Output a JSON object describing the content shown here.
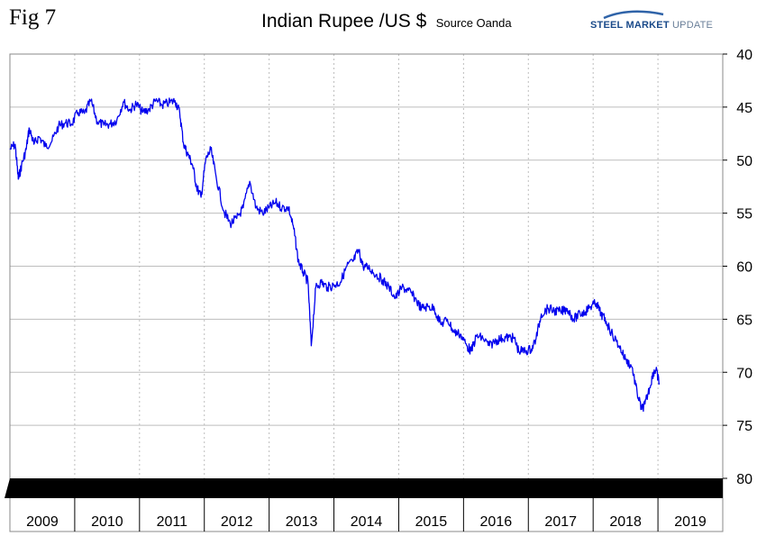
{
  "header": {
    "fig_label": "Fig 7",
    "title": "Indian Rupee /US $",
    "subtitle": "Source Oanda",
    "brand_part1": "STEEL MARKET",
    "brand_part2": "UPDATE"
  },
  "colors": {
    "series": "#0000ee",
    "grid": "#bdbdbd",
    "band": "#000000",
    "brand": "#1a4a8a"
  },
  "chart_data": {
    "type": "line",
    "title": "Indian Rupee /US $",
    "subtitle": "Source Oanda",
    "x_categories": [
      "2009",
      "2010",
      "2011",
      "2012",
      "2013",
      "2014",
      "2015",
      "2016",
      "2017",
      "2018",
      "2019"
    ],
    "y_axis": {
      "min": 40,
      "max": 80,
      "reversed": true,
      "ticks": [
        40,
        45,
        50,
        55,
        60,
        65,
        70,
        75,
        80
      ],
      "position": "right"
    },
    "grid": true,
    "series": [
      {
        "color": "#0000ee",
        "points": [
          [
            2009.0,
            49.0
          ],
          [
            2009.08,
            48.5
          ],
          [
            2009.13,
            51.8
          ],
          [
            2009.18,
            50.5
          ],
          [
            2009.25,
            49.0
          ],
          [
            2009.3,
            47.0
          ],
          [
            2009.37,
            48.5
          ],
          [
            2009.45,
            47.8
          ],
          [
            2009.55,
            48.7
          ],
          [
            2009.65,
            48.2
          ],
          [
            2009.75,
            46.8
          ],
          [
            2009.85,
            46.5
          ],
          [
            2009.95,
            46.6
          ],
          [
            2010.05,
            45.5
          ],
          [
            2010.15,
            45.6
          ],
          [
            2010.25,
            44.4
          ],
          [
            2010.35,
            46.4
          ],
          [
            2010.45,
            46.7
          ],
          [
            2010.55,
            46.6
          ],
          [
            2010.65,
            46.2
          ],
          [
            2010.75,
            44.5
          ],
          [
            2010.85,
            45.3
          ],
          [
            2010.95,
            44.7
          ],
          [
            2011.05,
            45.5
          ],
          [
            2011.15,
            45.2
          ],
          [
            2011.25,
            44.4
          ],
          [
            2011.35,
            44.8
          ],
          [
            2011.45,
            44.6
          ],
          [
            2011.55,
            44.4
          ],
          [
            2011.62,
            45.5
          ],
          [
            2011.68,
            48.5
          ],
          [
            2011.75,
            49.5
          ],
          [
            2011.82,
            50.5
          ],
          [
            2011.88,
            52.5
          ],
          [
            2011.95,
            53.5
          ],
          [
            2012.02,
            50.0
          ],
          [
            2012.1,
            49.0
          ],
          [
            2012.18,
            51.5
          ],
          [
            2012.3,
            54.8
          ],
          [
            2012.4,
            56.0
          ],
          [
            2012.5,
            55.5
          ],
          [
            2012.6,
            54.5
          ],
          [
            2012.7,
            52.0
          ],
          [
            2012.8,
            54.5
          ],
          [
            2012.9,
            55.0
          ],
          [
            2013.0,
            54.5
          ],
          [
            2013.1,
            54.0
          ],
          [
            2013.2,
            54.5
          ],
          [
            2013.3,
            54.5
          ],
          [
            2013.38,
            56.5
          ],
          [
            2013.45,
            59.5
          ],
          [
            2013.52,
            60.5
          ],
          [
            2013.6,
            61.5
          ],
          [
            2013.65,
            67.5
          ],
          [
            2013.72,
            62.0
          ],
          [
            2013.8,
            61.5
          ],
          [
            2013.9,
            62.0
          ],
          [
            2014.0,
            61.8
          ],
          [
            2014.1,
            61.5
          ],
          [
            2014.2,
            60.0
          ],
          [
            2014.3,
            59.5
          ],
          [
            2014.38,
            58.5
          ],
          [
            2014.45,
            60.0
          ],
          [
            2014.55,
            60.2
          ],
          [
            2014.65,
            60.8
          ],
          [
            2014.75,
            61.3
          ],
          [
            2014.85,
            62.0
          ],
          [
            2014.95,
            63.0
          ],
          [
            2015.05,
            62.0
          ],
          [
            2015.15,
            62.3
          ],
          [
            2015.25,
            63.0
          ],
          [
            2015.35,
            64.0
          ],
          [
            2015.45,
            63.8
          ],
          [
            2015.55,
            64.0
          ],
          [
            2015.65,
            65.5
          ],
          [
            2015.75,
            65.0
          ],
          [
            2015.85,
            66.2
          ],
          [
            2015.95,
            66.4
          ],
          [
            2016.05,
            67.5
          ],
          [
            2016.12,
            68.0
          ],
          [
            2016.2,
            66.6
          ],
          [
            2016.3,
            66.8
          ],
          [
            2016.4,
            67.5
          ],
          [
            2016.5,
            67.0
          ],
          [
            2016.6,
            66.8
          ],
          [
            2016.7,
            66.7
          ],
          [
            2016.78,
            66.8
          ],
          [
            2016.85,
            68.0
          ],
          [
            2016.95,
            68.0
          ],
          [
            2017.05,
            67.8
          ],
          [
            2017.12,
            66.8
          ],
          [
            2017.2,
            64.5
          ],
          [
            2017.3,
            64.0
          ],
          [
            2017.4,
            64.2
          ],
          [
            2017.5,
            64.3
          ],
          [
            2017.6,
            64.0
          ],
          [
            2017.7,
            65.0
          ],
          [
            2017.8,
            64.5
          ],
          [
            2017.88,
            64.3
          ],
          [
            2017.95,
            63.8
          ],
          [
            2018.05,
            63.5
          ],
          [
            2018.12,
            64.5
          ],
          [
            2018.2,
            65.2
          ],
          [
            2018.3,
            66.5
          ],
          [
            2018.4,
            67.5
          ],
          [
            2018.5,
            68.8
          ],
          [
            2018.6,
            69.5
          ],
          [
            2018.68,
            72.0
          ],
          [
            2018.75,
            73.5
          ],
          [
            2018.8,
            73.0
          ],
          [
            2018.87,
            71.5
          ],
          [
            2018.93,
            70.0
          ],
          [
            2018.97,
            69.8
          ],
          [
            2019.02,
            71.0
          ]
        ]
      }
    ]
  }
}
